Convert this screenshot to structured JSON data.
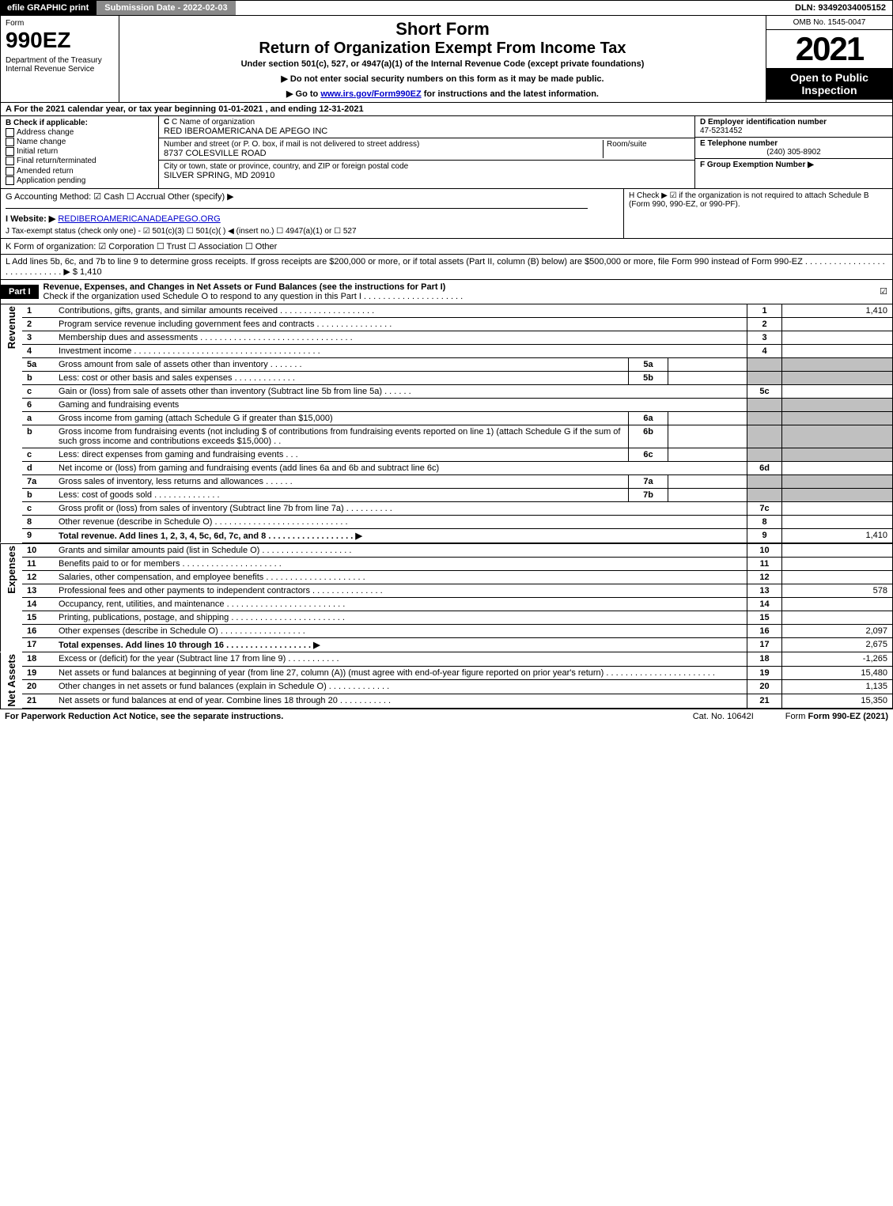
{
  "top_bar": {
    "left": "efile GRAPHIC print",
    "mid": "Submission Date - 2022-02-03",
    "right": "DLN: 93492034005152"
  },
  "header": {
    "form_label": "Form",
    "form_number": "990EZ",
    "dept": "Department of the Treasury\nInternal Revenue Service",
    "title1": "Short Form",
    "title2": "Return of Organization Exempt From Income Tax",
    "sub": "Under section 501(c), 527, or 4947(a)(1) of the Internal Revenue Code (except private foundations)",
    "sub2a": "▶ Do not enter social security numbers on this form as it may be made public.",
    "sub2b_pre": "▶ Go to ",
    "sub2b_link": "www.irs.gov/Form990EZ",
    "sub2b_post": " for instructions and the latest information.",
    "omb": "OMB No. 1545-0047",
    "year": "2021",
    "open": "Open to Public Inspection"
  },
  "line_a": "A  For the 2021 calendar year, or tax year beginning 01-01-2021 , and ending 12-31-2021",
  "section_b": {
    "label": "B  Check if applicable:",
    "opts": [
      "Address change",
      "Name change",
      "Initial return",
      "Final return/terminated",
      "Amended return",
      "Application pending"
    ]
  },
  "section_c": {
    "name_lbl": "C Name of organization",
    "name_val": "RED IBEROAMERICANA DE APEGO INC",
    "street_lbl": "Number and street (or P. O. box, if mail is not delivered to street address)",
    "room_lbl": "Room/suite",
    "street_val": "8737 COLESVILLE ROAD",
    "city_lbl": "City or town, state or province, country, and ZIP or foreign postal code",
    "city_val": "SILVER SPRING, MD  20910"
  },
  "section_d": {
    "ein_lbl": "D Employer identification number",
    "ein_val": "47-5231452",
    "tel_lbl": "E Telephone number",
    "tel_val": "(240) 305-8902",
    "grp_lbl": "F Group Exemption Number  ▶"
  },
  "line_g": "G Accounting Method:   ☑ Cash  ☐ Accrual  Other (specify) ▶",
  "line_h": "H  Check ▶ ☑ if the organization is not required to attach Schedule B (Form 990, 990-EZ, or 990-PF).",
  "line_i_lbl": "I Website: ▶",
  "line_i_val": "REDIBEROAMERICANADEAPEGO.ORG",
  "line_j": "J Tax-exempt status (check only one) - ☑ 501(c)(3) ☐ 501(c)(  ) ◀ (insert no.) ☐ 4947(a)(1) or ☐ 527",
  "line_k": "K Form of organization:  ☑ Corporation  ☐ Trust  ☐ Association  ☐ Other",
  "line_l": "L Add lines 5b, 6c, and 7b to line 9 to determine gross receipts. If gross receipts are $200,000 or more, or if total assets (Part II, column (B) below) are $500,000 or more, file Form 990 instead of Form 990-EZ . . . . . . . . . . . . . . . . . . . . . . . . . . . . . ▶ $ 1,410",
  "part1": {
    "label": "Part I",
    "title": "Revenue, Expenses, and Changes in Net Assets or Fund Balances (see the instructions for Part I)",
    "sub": "Check if the organization used Schedule O to respond to any question in this Part I . . . . . . . . . . . . . . . . . . . . .",
    "checked": "☑"
  },
  "side_labels": {
    "revenue": "Revenue",
    "expenses": "Expenses",
    "net": "Net Assets"
  },
  "rows": [
    {
      "n": "1",
      "d": "Contributions, gifts, grants, and similar amounts received . . . . . . . . . . . . . . . . . . . .",
      "c": "1",
      "v": "1,410"
    },
    {
      "n": "2",
      "d": "Program service revenue including government fees and contracts . . . . . . . . . . . . . . . .",
      "c": "2",
      "v": ""
    },
    {
      "n": "3",
      "d": "Membership dues and assessments . . . . . . . . . . . . . . . . . . . . . . . . . . . . . . . .",
      "c": "3",
      "v": ""
    },
    {
      "n": "4",
      "d": "Investment income . . . . . . . . . . . . . . . . . . . . . . . . . . . . . . . . . . . . . . .",
      "c": "4",
      "v": ""
    },
    {
      "n": "5a",
      "d": "Gross amount from sale of assets other than inventory . . . . . . .",
      "sn": "5a",
      "sv": "",
      "shade": true
    },
    {
      "n": "b",
      "d": "Less: cost or other basis and sales expenses . . . . . . . . . . . . .",
      "sn": "5b",
      "sv": "",
      "shade": true
    },
    {
      "n": "c",
      "d": "Gain or (loss) from sale of assets other than inventory (Subtract line 5b from line 5a) . . . . . .",
      "c": "5c",
      "v": ""
    },
    {
      "n": "6",
      "d": "Gaming and fundraising events",
      "shade": true,
      "nocols": true
    },
    {
      "n": "a",
      "d": "Gross income from gaming (attach Schedule G if greater than $15,000)",
      "sn": "6a",
      "sv": "",
      "shade": true
    },
    {
      "n": "b",
      "d": "Gross income from fundraising events (not including $                    of contributions from fundraising events reported on line 1) (attach Schedule G if the sum of such gross income and contributions exceeds $15,000)   .  .",
      "sn": "6b",
      "sv": "",
      "shade": true
    },
    {
      "n": "c",
      "d": "Less: direct expenses from gaming and fundraising events   .  .  .",
      "sn": "6c",
      "sv": "",
      "shade": true
    },
    {
      "n": "d",
      "d": "Net income or (loss) from gaming and fundraising events (add lines 6a and 6b and subtract line 6c)",
      "c": "6d",
      "v": ""
    },
    {
      "n": "7a",
      "d": "Gross sales of inventory, less returns and allowances . . . . . .",
      "sn": "7a",
      "sv": "",
      "shade": true
    },
    {
      "n": "b",
      "d": "Less: cost of goods sold          .  .  .  .  .  .  .  .  .  .  .  .  .  .",
      "sn": "7b",
      "sv": "",
      "shade": true
    },
    {
      "n": "c",
      "d": "Gross profit or (loss) from sales of inventory (Subtract line 7b from line 7a) . . . . . . . . . .",
      "c": "7c",
      "v": ""
    },
    {
      "n": "8",
      "d": "Other revenue (describe in Schedule O) . . . . . . . . . . . . . . . . . . . . . . . . . . . .",
      "c": "8",
      "v": ""
    },
    {
      "n": "9",
      "d": "Total revenue. Add lines 1, 2, 3, 4, 5c, 6d, 7c, and 8  . . . . . . . . . . . . . . . . . .  ▶",
      "c": "9",
      "v": "1,410",
      "bold": true
    }
  ],
  "exp_rows": [
    {
      "n": "10",
      "d": "Grants and similar amounts paid (list in Schedule O) . . . . . . . . . . . . . . . . . . .",
      "c": "10",
      "v": ""
    },
    {
      "n": "11",
      "d": "Benefits paid to or for members      .  .  .  .  .  .  .  .  .  .  .  .  .  .  .  .  .  .  .  .  .",
      "c": "11",
      "v": ""
    },
    {
      "n": "12",
      "d": "Salaries, other compensation, and employee benefits . . . . . . . . . . . . . . . . . . . . .",
      "c": "12",
      "v": ""
    },
    {
      "n": "13",
      "d": "Professional fees and other payments to independent contractors . . . . . . . . . . . . . . .",
      "c": "13",
      "v": "578"
    },
    {
      "n": "14",
      "d": "Occupancy, rent, utilities, and maintenance . . . . . . . . . . . . . . . . . . . . . . . . .",
      "c": "14",
      "v": ""
    },
    {
      "n": "15",
      "d": "Printing, publications, postage, and shipping . . . . . . . . . . . . . . . . . . . . . . . .",
      "c": "15",
      "v": ""
    },
    {
      "n": "16",
      "d": "Other expenses (describe in Schedule O)     .  .  .  .  .  .  .  .  .  .  .  .  .  .  .  .  .  .",
      "c": "16",
      "v": "2,097"
    },
    {
      "n": "17",
      "d": "Total expenses. Add lines 10 through 16     .  .  .  .  .  .  .  .  .  .  .  .  .  .  .  .  .  .  ▶",
      "c": "17",
      "v": "2,675",
      "bold": true
    }
  ],
  "net_rows": [
    {
      "n": "18",
      "d": "Excess or (deficit) for the year (Subtract line 17 from line 9)      .  .  .  .  .  .  .  .  .  .  .",
      "c": "18",
      "v": "-1,265"
    },
    {
      "n": "19",
      "d": "Net assets or fund balances at beginning of year (from line 27, column (A)) (must agree with end-of-year figure reported on prior year's return) . . . . . . . . . . . . . . . . . . . . . . .",
      "c": "19",
      "v": "15,480"
    },
    {
      "n": "20",
      "d": "Other changes in net assets or fund balances (explain in Schedule O) . . . . . . . . . . . . .",
      "c": "20",
      "v": "1,135"
    },
    {
      "n": "21",
      "d": "Net assets or fund balances at end of year. Combine lines 18 through 20 . . . . . . . . . . .",
      "c": "21",
      "v": "15,350"
    }
  ],
  "footer": {
    "l": "For Paperwork Reduction Act Notice, see the separate instructions.",
    "m": "Cat. No. 10642I",
    "r": "Form 990-EZ (2021)"
  }
}
